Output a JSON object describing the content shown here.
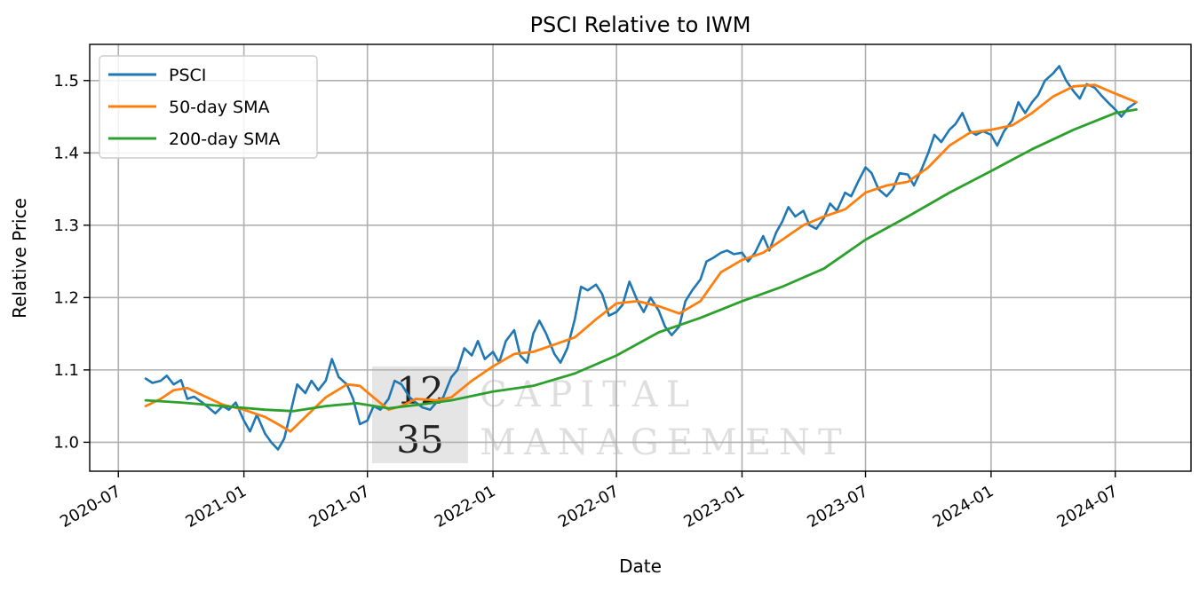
{
  "chart_data": {
    "type": "line",
    "title": "PSCI Relative to IWM",
    "xlabel": "Date",
    "ylabel": "Relative Price",
    "x_range": [
      "2020-05-20",
      "2024-10-20"
    ],
    "ylim": [
      0.96,
      1.55
    ],
    "grid": true,
    "legend_position": "top-left",
    "x_ticks": [
      {
        "date": "2020-07-01",
        "label": "2020-07"
      },
      {
        "date": "2021-01-01",
        "label": "2021-01"
      },
      {
        "date": "2021-07-01",
        "label": "2021-07"
      },
      {
        "date": "2022-01-01",
        "label": "2022-01"
      },
      {
        "date": "2022-07-01",
        "label": "2022-07"
      },
      {
        "date": "2023-01-01",
        "label": "2023-01"
      },
      {
        "date": "2023-07-01",
        "label": "2023-07"
      },
      {
        "date": "2024-01-01",
        "label": "2024-01"
      },
      {
        "date": "2024-07-01",
        "label": "2024-07"
      }
    ],
    "y_ticks": [
      {
        "value": 1.0,
        "label": "1.0"
      },
      {
        "value": 1.1,
        "label": "1.1"
      },
      {
        "value": 1.2,
        "label": "1.2"
      },
      {
        "value": 1.3,
        "label": "1.3"
      },
      {
        "value": 1.4,
        "label": "1.4"
      },
      {
        "value": 1.5,
        "label": "1.5"
      }
    ],
    "series": [
      {
        "name": "PSCI",
        "color": "#1f77b4",
        "points": [
          [
            "2020-08-10",
            1.088
          ],
          [
            "2020-08-20",
            1.082
          ],
          [
            "2020-09-01",
            1.085
          ],
          [
            "2020-09-10",
            1.092
          ],
          [
            "2020-09-20",
            1.08
          ],
          [
            "2020-10-01",
            1.086
          ],
          [
            "2020-10-10",
            1.06
          ],
          [
            "2020-10-20",
            1.063
          ],
          [
            "2020-11-01",
            1.055
          ],
          [
            "2020-11-10",
            1.048
          ],
          [
            "2020-11-20",
            1.04
          ],
          [
            "2020-12-01",
            1.05
          ],
          [
            "2020-12-10",
            1.045
          ],
          [
            "2020-12-20",
            1.055
          ],
          [
            "2021-01-01",
            1.03
          ],
          [
            "2021-01-10",
            1.015
          ],
          [
            "2021-01-20",
            1.038
          ],
          [
            "2021-02-01",
            1.012
          ],
          [
            "2021-02-10",
            1.0
          ],
          [
            "2021-02-20",
            0.99
          ],
          [
            "2021-03-01",
            1.005
          ],
          [
            "2021-03-10",
            1.04
          ],
          [
            "2021-03-20",
            1.08
          ],
          [
            "2021-04-01",
            1.068
          ],
          [
            "2021-04-10",
            1.085
          ],
          [
            "2021-04-20",
            1.072
          ],
          [
            "2021-05-01",
            1.085
          ],
          [
            "2021-05-10",
            1.115
          ],
          [
            "2021-05-20",
            1.09
          ],
          [
            "2021-06-01",
            1.08
          ],
          [
            "2021-06-10",
            1.06
          ],
          [
            "2021-06-20",
            1.025
          ],
          [
            "2021-07-01",
            1.03
          ],
          [
            "2021-07-10",
            1.05
          ],
          [
            "2021-07-20",
            1.045
          ],
          [
            "2021-08-01",
            1.06
          ],
          [
            "2021-08-10",
            1.085
          ],
          [
            "2021-08-20",
            1.08
          ],
          [
            "2021-09-01",
            1.062
          ],
          [
            "2021-09-10",
            1.055
          ],
          [
            "2021-09-20",
            1.048
          ],
          [
            "2021-10-01",
            1.045
          ],
          [
            "2021-10-10",
            1.055
          ],
          [
            "2021-10-20",
            1.062
          ],
          [
            "2021-11-01",
            1.09
          ],
          [
            "2021-11-10",
            1.1
          ],
          [
            "2021-11-20",
            1.13
          ],
          [
            "2021-12-01",
            1.12
          ],
          [
            "2021-12-10",
            1.14
          ],
          [
            "2021-12-20",
            1.115
          ],
          [
            "2022-01-01",
            1.125
          ],
          [
            "2022-01-10",
            1.11
          ],
          [
            "2022-01-20",
            1.14
          ],
          [
            "2022-02-01",
            1.155
          ],
          [
            "2022-02-10",
            1.12
          ],
          [
            "2022-02-20",
            1.11
          ],
          [
            "2022-03-01",
            1.15
          ],
          [
            "2022-03-10",
            1.168
          ],
          [
            "2022-03-20",
            1.15
          ],
          [
            "2022-04-01",
            1.122
          ],
          [
            "2022-04-10",
            1.11
          ],
          [
            "2022-04-20",
            1.13
          ],
          [
            "2022-05-01",
            1.17
          ],
          [
            "2022-05-10",
            1.215
          ],
          [
            "2022-05-20",
            1.21
          ],
          [
            "2022-06-01",
            1.218
          ],
          [
            "2022-06-10",
            1.205
          ],
          [
            "2022-06-20",
            1.175
          ],
          [
            "2022-07-01",
            1.18
          ],
          [
            "2022-07-10",
            1.19
          ],
          [
            "2022-07-20",
            1.222
          ],
          [
            "2022-08-01",
            1.195
          ],
          [
            "2022-08-10",
            1.18
          ],
          [
            "2022-08-20",
            1.2
          ],
          [
            "2022-09-01",
            1.182
          ],
          [
            "2022-09-10",
            1.16
          ],
          [
            "2022-09-20",
            1.148
          ],
          [
            "2022-10-01",
            1.16
          ],
          [
            "2022-10-10",
            1.195
          ],
          [
            "2022-10-20",
            1.21
          ],
          [
            "2022-11-01",
            1.225
          ],
          [
            "2022-11-10",
            1.25
          ],
          [
            "2022-11-20",
            1.255
          ],
          [
            "2022-12-01",
            1.262
          ],
          [
            "2022-12-10",
            1.265
          ],
          [
            "2022-12-20",
            1.26
          ],
          [
            "2023-01-01",
            1.262
          ],
          [
            "2023-01-10",
            1.25
          ],
          [
            "2023-01-20",
            1.262
          ],
          [
            "2023-02-01",
            1.285
          ],
          [
            "2023-02-10",
            1.265
          ],
          [
            "2023-02-20",
            1.29
          ],
          [
            "2023-03-01",
            1.305
          ],
          [
            "2023-03-10",
            1.325
          ],
          [
            "2023-03-20",
            1.312
          ],
          [
            "2023-04-01",
            1.32
          ],
          [
            "2023-04-10",
            1.3
          ],
          [
            "2023-04-20",
            1.295
          ],
          [
            "2023-05-01",
            1.31
          ],
          [
            "2023-05-10",
            1.33
          ],
          [
            "2023-05-20",
            1.32
          ],
          [
            "2023-06-01",
            1.345
          ],
          [
            "2023-06-10",
            1.34
          ],
          [
            "2023-06-20",
            1.36
          ],
          [
            "2023-07-01",
            1.38
          ],
          [
            "2023-07-10",
            1.372
          ],
          [
            "2023-07-20",
            1.35
          ],
          [
            "2023-08-01",
            1.34
          ],
          [
            "2023-08-10",
            1.35
          ],
          [
            "2023-08-20",
            1.372
          ],
          [
            "2023-09-01",
            1.37
          ],
          [
            "2023-09-10",
            1.355
          ],
          [
            "2023-09-20",
            1.375
          ],
          [
            "2023-10-01",
            1.4
          ],
          [
            "2023-10-10",
            1.425
          ],
          [
            "2023-10-20",
            1.415
          ],
          [
            "2023-11-01",
            1.432
          ],
          [
            "2023-11-10",
            1.44
          ],
          [
            "2023-11-20",
            1.455
          ],
          [
            "2023-12-01",
            1.43
          ],
          [
            "2023-12-10",
            1.425
          ],
          [
            "2023-12-20",
            1.43
          ],
          [
            "2024-01-01",
            1.425
          ],
          [
            "2024-01-10",
            1.41
          ],
          [
            "2024-01-20",
            1.43
          ],
          [
            "2024-02-01",
            1.445
          ],
          [
            "2024-02-10",
            1.47
          ],
          [
            "2024-02-20",
            1.455
          ],
          [
            "2024-03-01",
            1.47
          ],
          [
            "2024-03-10",
            1.48
          ],
          [
            "2024-03-20",
            1.5
          ],
          [
            "2024-04-01",
            1.51
          ],
          [
            "2024-04-10",
            1.52
          ],
          [
            "2024-04-20",
            1.5
          ],
          [
            "2024-05-01",
            1.485
          ],
          [
            "2024-05-10",
            1.475
          ],
          [
            "2024-05-20",
            1.495
          ],
          [
            "2024-06-01",
            1.49
          ],
          [
            "2024-06-10",
            1.48
          ],
          [
            "2024-06-20",
            1.47
          ],
          [
            "2024-07-01",
            1.46
          ],
          [
            "2024-07-10",
            1.45
          ],
          [
            "2024-07-20",
            1.462
          ],
          [
            "2024-08-01",
            1.47
          ]
        ]
      },
      {
        "name": "50-day SMA",
        "color": "#ff7f0e",
        "points": [
          [
            "2020-08-10",
            1.05
          ],
          [
            "2020-09-01",
            1.06
          ],
          [
            "2020-09-20",
            1.072
          ],
          [
            "2020-10-10",
            1.075
          ],
          [
            "2020-11-01",
            1.065
          ],
          [
            "2020-12-01",
            1.052
          ],
          [
            "2021-01-01",
            1.045
          ],
          [
            "2021-02-01",
            1.035
          ],
          [
            "2021-02-20",
            1.025
          ],
          [
            "2021-03-10",
            1.015
          ],
          [
            "2021-04-01",
            1.035
          ],
          [
            "2021-05-01",
            1.062
          ],
          [
            "2021-06-01",
            1.08
          ],
          [
            "2021-06-20",
            1.078
          ],
          [
            "2021-07-10",
            1.062
          ],
          [
            "2021-08-01",
            1.045
          ],
          [
            "2021-08-20",
            1.05
          ],
          [
            "2021-09-10",
            1.06
          ],
          [
            "2021-10-10",
            1.058
          ],
          [
            "2021-11-01",
            1.062
          ],
          [
            "2021-12-01",
            1.085
          ],
          [
            "2022-01-01",
            1.105
          ],
          [
            "2022-02-01",
            1.122
          ],
          [
            "2022-03-01",
            1.125
          ],
          [
            "2022-04-01",
            1.135
          ],
          [
            "2022-05-01",
            1.145
          ],
          [
            "2022-06-01",
            1.17
          ],
          [
            "2022-07-01",
            1.192
          ],
          [
            "2022-08-01",
            1.195
          ],
          [
            "2022-09-01",
            1.188
          ],
          [
            "2022-10-01",
            1.178
          ],
          [
            "2022-11-01",
            1.195
          ],
          [
            "2022-12-01",
            1.235
          ],
          [
            "2023-01-01",
            1.252
          ],
          [
            "2023-02-01",
            1.262
          ],
          [
            "2023-03-01",
            1.28
          ],
          [
            "2023-04-01",
            1.3
          ],
          [
            "2023-05-01",
            1.312
          ],
          [
            "2023-06-01",
            1.322
          ],
          [
            "2023-07-01",
            1.345
          ],
          [
            "2023-08-01",
            1.355
          ],
          [
            "2023-09-01",
            1.36
          ],
          [
            "2023-10-01",
            1.38
          ],
          [
            "2023-11-01",
            1.41
          ],
          [
            "2023-12-01",
            1.428
          ],
          [
            "2024-01-01",
            1.432
          ],
          [
            "2024-02-01",
            1.438
          ],
          [
            "2024-03-01",
            1.455
          ],
          [
            "2024-04-01",
            1.478
          ],
          [
            "2024-05-01",
            1.492
          ],
          [
            "2024-06-01",
            1.494
          ],
          [
            "2024-07-01",
            1.482
          ],
          [
            "2024-08-01",
            1.47
          ]
        ]
      },
      {
        "name": "200-day SMA",
        "color": "#2ca02c",
        "points": [
          [
            "2020-08-10",
            1.058
          ],
          [
            "2020-10-01",
            1.055
          ],
          [
            "2020-12-01",
            1.05
          ],
          [
            "2021-02-01",
            1.045
          ],
          [
            "2021-03-15",
            1.043
          ],
          [
            "2021-05-01",
            1.05
          ],
          [
            "2021-06-15",
            1.054
          ],
          [
            "2021-08-01",
            1.047
          ],
          [
            "2021-09-15",
            1.052
          ],
          [
            "2021-11-01",
            1.058
          ],
          [
            "2022-01-01",
            1.07
          ],
          [
            "2022-03-01",
            1.078
          ],
          [
            "2022-05-01",
            1.095
          ],
          [
            "2022-07-01",
            1.12
          ],
          [
            "2022-09-01",
            1.152
          ],
          [
            "2022-11-01",
            1.172
          ],
          [
            "2023-01-01",
            1.195
          ],
          [
            "2023-03-01",
            1.215
          ],
          [
            "2023-05-01",
            1.24
          ],
          [
            "2023-07-01",
            1.28
          ],
          [
            "2023-09-01",
            1.312
          ],
          [
            "2023-11-01",
            1.345
          ],
          [
            "2024-01-01",
            1.375
          ],
          [
            "2024-03-01",
            1.405
          ],
          [
            "2024-05-01",
            1.432
          ],
          [
            "2024-07-01",
            1.455
          ],
          [
            "2024-08-01",
            1.46
          ]
        ]
      }
    ]
  },
  "watermark": {
    "logo_top": "12",
    "logo_bottom": "35",
    "line1": "CAPITAL",
    "line2": "MANAGEMENT"
  }
}
